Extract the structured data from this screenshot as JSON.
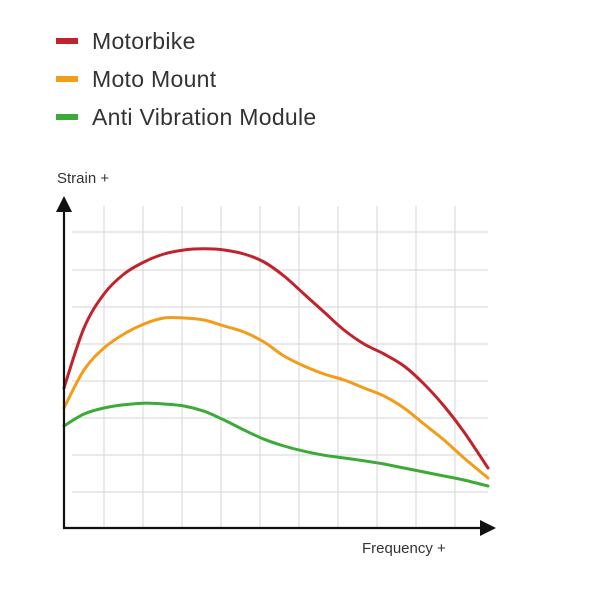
{
  "chart_data": {
    "type": "line",
    "title": "",
    "xlabel": "Frequency +",
    "ylabel": "Strain +",
    "legend_position": "top-left",
    "grid": true,
    "xlim": [
      0,
      10.6
    ],
    "ylim": [
      0,
      8
    ],
    "x_ticks_labeled": false,
    "y_ticks_labeled": false,
    "series": [
      {
        "name": "Motorbike",
        "color": "#C0232B",
        "x": [
          0,
          0.5,
          1,
          1.5,
          2,
          2.5,
          3,
          3.5,
          4,
          4.5,
          5,
          5.5,
          6,
          6.5,
          7,
          7.5,
          8,
          8.5,
          9,
          9.5,
          10,
          10.6
        ],
        "y": [
          3.5,
          5.0,
          5.85,
          6.35,
          6.65,
          6.85,
          6.95,
          6.98,
          6.95,
          6.85,
          6.65,
          6.3,
          5.85,
          5.4,
          4.95,
          4.6,
          4.35,
          4.05,
          3.6,
          3.05,
          2.4,
          1.5
        ]
      },
      {
        "name": "Moto Mount",
        "color": "#F39C1A",
        "x": [
          0,
          0.5,
          1,
          1.5,
          2,
          2.5,
          3,
          3.5,
          4,
          4.5,
          5,
          5.5,
          6,
          6.5,
          7,
          7.5,
          8,
          8.5,
          9,
          9.5,
          10,
          10.6
        ],
        "y": [
          3.0,
          3.95,
          4.5,
          4.85,
          5.1,
          5.25,
          5.25,
          5.2,
          5.05,
          4.9,
          4.65,
          4.3,
          4.05,
          3.85,
          3.7,
          3.5,
          3.3,
          3.0,
          2.6,
          2.2,
          1.75,
          1.25
        ]
      },
      {
        "name": "Anti Vibration Module",
        "color": "#3BAA36",
        "x": [
          0,
          0.5,
          1,
          1.5,
          2,
          2.5,
          3,
          3.5,
          4,
          4.5,
          5,
          5.5,
          6,
          6.5,
          7,
          7.5,
          8,
          8.5,
          9,
          9.5,
          10,
          10.6
        ],
        "y": [
          2.55,
          2.85,
          3.0,
          3.08,
          3.12,
          3.1,
          3.05,
          2.92,
          2.7,
          2.45,
          2.22,
          2.05,
          1.92,
          1.82,
          1.75,
          1.68,
          1.6,
          1.5,
          1.4,
          1.3,
          1.2,
          1.05
        ]
      }
    ]
  }
}
